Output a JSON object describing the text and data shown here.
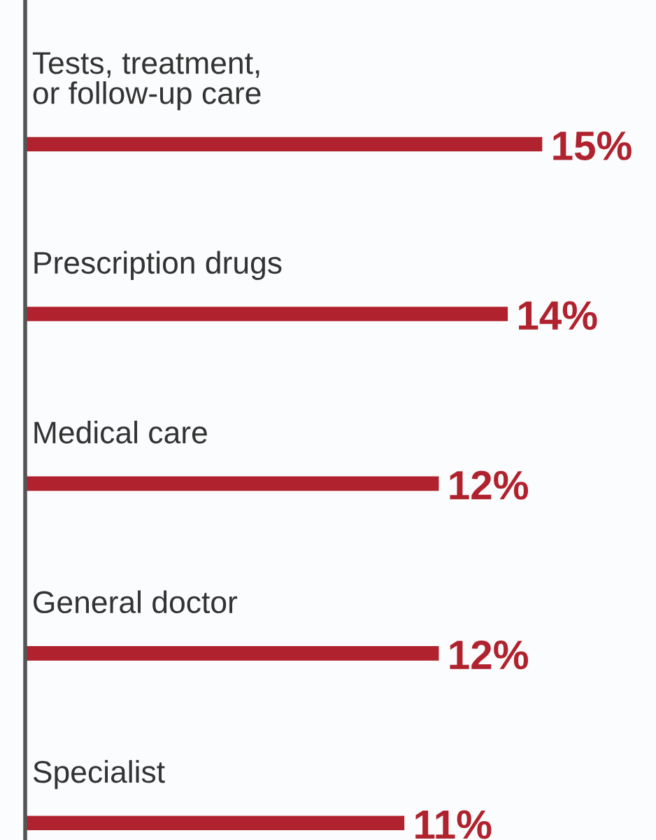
{
  "chart_data": {
    "type": "bar",
    "orientation": "horizontal",
    "categories": [
      "Tests, treatment,\nor follow-up care",
      "Prescription drugs",
      "Medical care",
      "General doctor",
      "Specialist"
    ],
    "values": [
      15,
      14,
      12,
      12,
      11
    ],
    "value_labels": [
      "15%",
      "14%",
      "12%",
      "12%",
      "11%"
    ],
    "color": "#b0232e"
  }
}
